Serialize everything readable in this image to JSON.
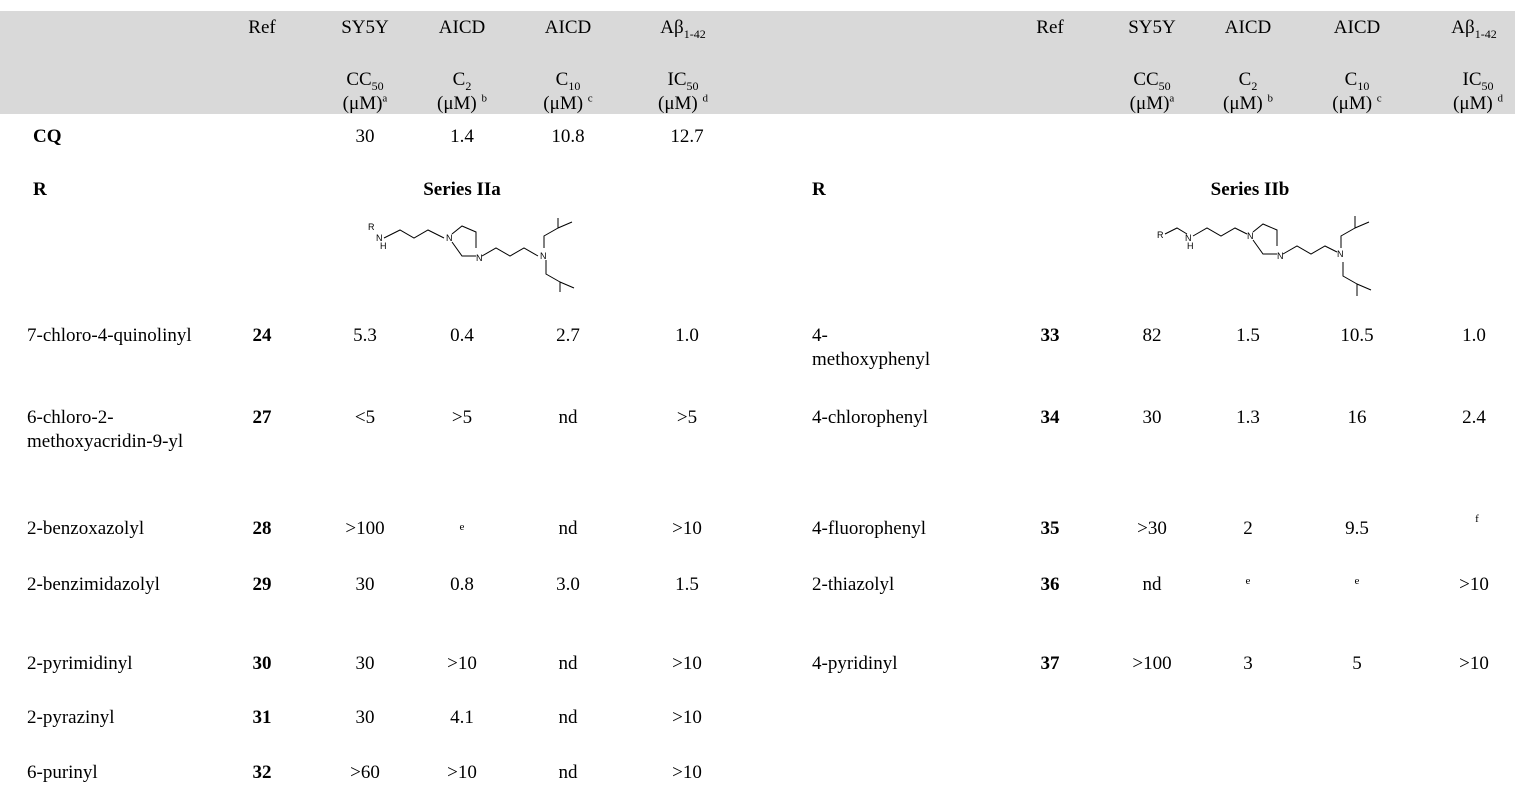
{
  "header": {
    "left": {
      "ref": "Ref",
      "sy5y": "SY5Y",
      "aicd2": "AICD",
      "aicd10": "AICD",
      "abeta_pre": "Aβ",
      "abeta_sub": "1-42",
      "cc50_main": "CC",
      "cc50_sub": "50",
      "cc50_unit": "(μM)",
      "cc50_note": "a",
      "c2_main": "C",
      "c2_sub": "2",
      "c2_unit": "(μM)",
      "c2_note": "b",
      "c10_main": "C",
      "c10_sub": "10",
      "c10_unit": "(μM)",
      "c10_note": "c",
      "ic50_main": "IC",
      "ic50_sub": "50",
      "ic50_unit": "(μM)",
      "ic50_note": "d"
    },
    "right": {
      "ref": "Ref",
      "sy5y": "SY5Y",
      "aicd2": "AICD",
      "aicd10": "AICD",
      "abeta_pre": "Aβ",
      "abeta_sub": "1-42",
      "cc50_main": "CC",
      "cc50_sub": "50",
      "cc50_unit": "(μM)",
      "cc50_note": "a",
      "c2_main": "C",
      "c2_sub": "2",
      "c2_unit": "(μM)",
      "c2_note": "b",
      "c10_main": "C",
      "c10_sub": "10",
      "c10_unit": "(μM)",
      "c10_note": "c",
      "ic50_main": "IC",
      "ic50_sub": "50",
      "ic50_unit": "(μM)",
      "ic50_note": "d"
    }
  },
  "cq": {
    "label": "CQ",
    "sy5y": "30",
    "c2": "1.4",
    "c10": "10.8",
    "ic50": "12.7"
  },
  "series_a": {
    "r_label": "R",
    "title": "Series IIa",
    "struct_r": "R",
    "struct_nh_n": "N",
    "struct_nh_h": "H",
    "struct_n": "N",
    "rows": [
      {
        "r": "7-chloro-4-quinolinyl",
        "ref": "24",
        "sy5y": "5.3",
        "c2": "0.4",
        "c10": "2.7",
        "ic50": "1.0"
      },
      {
        "r": "6-chloro-2-methoxyacridin-9-yl",
        "ref": "27",
        "sy5y": "<5",
        "c2": ">5",
        "c10": "nd",
        "ic50": ">5"
      },
      {
        "r": "2-benzoxazolyl",
        "ref": "28",
        "sy5y": ">100",
        "c2": "e",
        "c10": "nd",
        "ic50": ">10"
      },
      {
        "r": "2-benzimidazolyl",
        "ref": "29",
        "sy5y": "30",
        "c2": "0.8",
        "c10": "3.0",
        "ic50": "1.5"
      },
      {
        "r": "2-pyrimidinyl",
        "ref": "30",
        "sy5y": "30",
        "c2": ">10",
        "c10": "nd",
        "ic50": ">10"
      },
      {
        "r": "2-pyrazinyl",
        "ref": "31",
        "sy5y": "30",
        "c2": "4.1",
        "c10": "nd",
        "ic50": ">10"
      },
      {
        "r": "6-purinyl",
        "ref": "32",
        "sy5y": ">60",
        "c2": ">10",
        "c10": "nd",
        "ic50": ">10"
      }
    ]
  },
  "series_b": {
    "r_label": "R",
    "title": "Series IIb",
    "struct_r": "R",
    "struct_nh_n": "N",
    "struct_nh_h": "H",
    "struct_n": "N",
    "rows": [
      {
        "r": "4-methoxyphenyl",
        "ref": "33",
        "sy5y": "82",
        "c2": "1.5",
        "c10": "10.5",
        "ic50": "1.0"
      },
      {
        "r": "4-chlorophenyl",
        "ref": "34",
        "sy5y": "30",
        "c2": "1.3",
        "c10": "16",
        "ic50": "2.4"
      },
      {
        "r": "4-fluorophenyl",
        "ref": "35",
        "sy5y": ">30",
        "c2": "2",
        "c10": "9.5",
        "ic50": "f"
      },
      {
        "r": "2-thiazolyl",
        "ref": "36",
        "sy5y": "nd",
        "c2": "e",
        "c10": "e",
        "ic50": ">10"
      },
      {
        "r": "4-pyridinyl",
        "ref": "37",
        "sy5y": ">100",
        "c2": "3",
        "c10": "5",
        "ic50": ">10"
      }
    ]
  }
}
